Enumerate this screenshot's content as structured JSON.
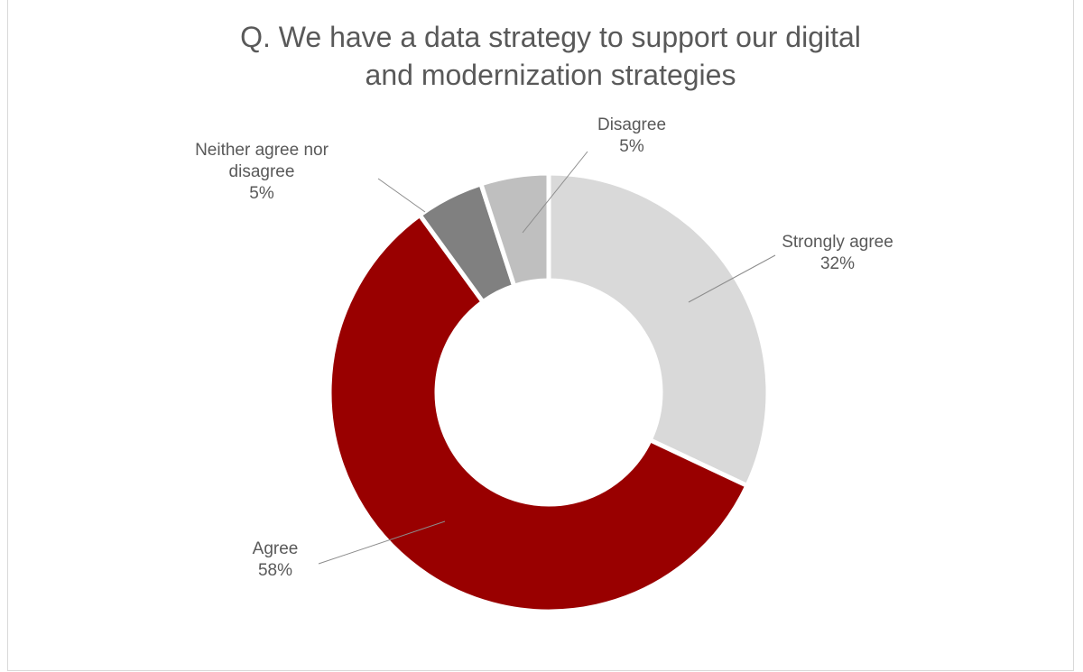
{
  "chart_data": {
    "type": "donut",
    "title": "Q. We have a data strategy to support our digital and modernization strategies",
    "categories": [
      "Strongly agree",
      "Agree",
      "Neither agree nor disagree",
      "Disagree"
    ],
    "values": [
      32,
      58,
      5,
      5
    ],
    "value_labels": [
      "32%",
      "58%",
      "5%",
      "5%"
    ],
    "colors": [
      "#d9d9d9",
      "#990000",
      "#808080",
      "#bfbfbf"
    ]
  }
}
